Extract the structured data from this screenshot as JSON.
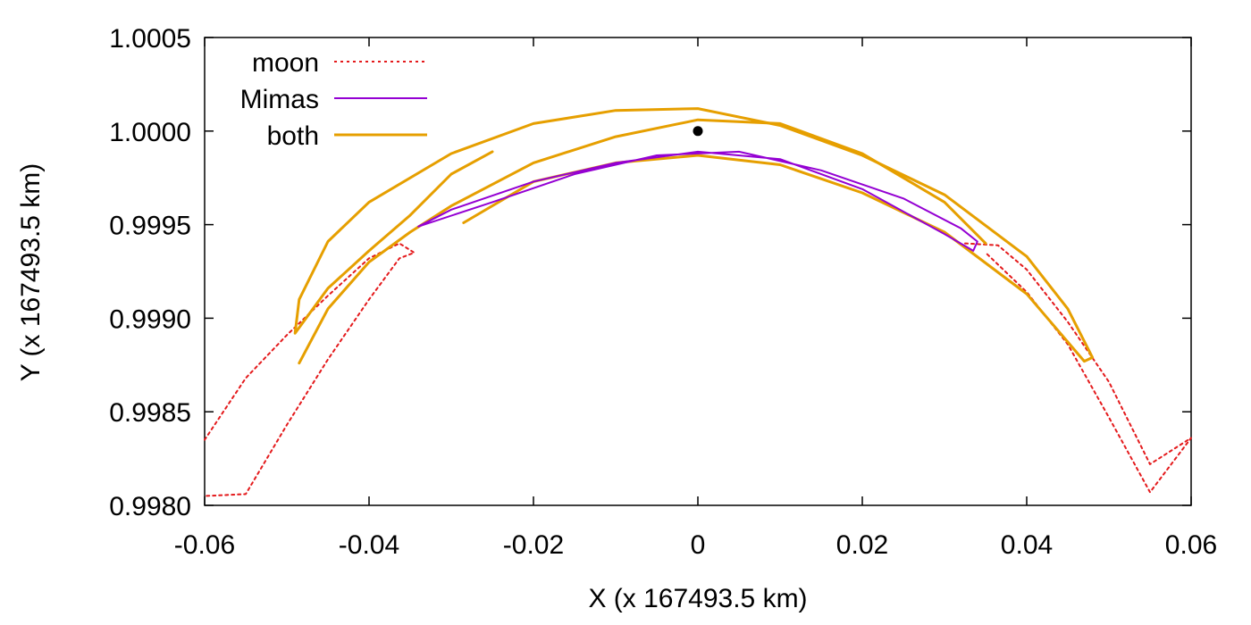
{
  "chart_data": {
    "type": "line",
    "title": "",
    "xlabel": "X (x 167493.5 km)",
    "ylabel": "Y (x 167493.5 km)",
    "xlim": [
      -0.06,
      0.06
    ],
    "ylim": [
      0.998,
      1.0005
    ],
    "x_ticks": [
      -0.06,
      -0.04,
      -0.02,
      0,
      0.02,
      0.04,
      0.06
    ],
    "x_tick_labels": [
      "-0.06",
      "-0.04",
      "-0.02",
      "0",
      "0.02",
      "0.04",
      "0.06"
    ],
    "y_ticks": [
      0.998,
      0.9985,
      0.999,
      0.9995,
      1.0,
      1.0005
    ],
    "y_tick_labels": [
      "0.9980",
      "0.9985",
      "0.9990",
      "0.9995",
      "1.0000",
      "1.0005"
    ],
    "grid": false,
    "legend_position": "top-left",
    "colors": {
      "moon": "#e41a1c",
      "mimas": "#9400d3",
      "both": "#e69f00",
      "marker": "#000000"
    },
    "series": [
      {
        "name": "moon",
        "style": "dotted",
        "x": [
          -0.06,
          -0.055,
          -0.05,
          -0.045,
          -0.04,
          -0.0363,
          -0.0345,
          -0.0363,
          -0.04,
          -0.045,
          -0.05,
          -0.055,
          -0.06
        ],
        "y": [
          0.99835,
          0.99868,
          0.99891,
          0.99912,
          0.99932,
          0.9994,
          0.99935,
          0.99932,
          0.9991,
          0.99878,
          0.99843,
          0.99806,
          0.99805
        ]
      },
      {
        "name": "moon",
        "style": "dotted",
        "x": [
          0.0325,
          0.0365,
          0.04,
          0.045,
          0.05,
          0.055,
          0.06,
          0.055,
          0.05,
          0.045,
          0.04,
          0.035
        ],
        "y": [
          0.9994,
          0.99939,
          0.99926,
          0.99898,
          0.99866,
          0.99822,
          0.99836,
          0.99807,
          0.99847,
          0.99886,
          0.99914,
          0.99935
        ]
      },
      {
        "name": "Mimas",
        "style": "solid",
        "x": [
          -0.034,
          -0.03,
          -0.02,
          -0.01,
          0,
          0.01,
          0.02,
          0.03,
          0.0335,
          0.034,
          0.032,
          0.025,
          0.015,
          0.005,
          -0.005,
          -0.015,
          -0.025,
          -0.034
        ],
        "y": [
          0.99949,
          0.99958,
          0.99973,
          0.99983,
          0.99989,
          0.99985,
          0.99969,
          0.99945,
          0.99936,
          0.99941,
          0.99948,
          0.99964,
          0.99979,
          0.99989,
          0.99987,
          0.99977,
          0.99962,
          0.99949
        ]
      },
      {
        "name": "both",
        "style": "solid",
        "x": [
          -0.0285,
          -0.02,
          -0.01,
          0,
          0.01,
          0.02,
          0.03,
          0.04,
          0.047,
          0.048,
          0.045,
          0.04,
          0.03,
          0.02,
          0.01,
          0,
          -0.01,
          -0.02,
          -0.03,
          -0.04,
          -0.045,
          -0.0485,
          -0.049,
          -0.045,
          -0.04,
          -0.035,
          -0.03,
          -0.025
        ],
        "y": [
          0.99951,
          0.99973,
          0.99983,
          0.99987,
          0.99982,
          0.99967,
          0.99946,
          0.99913,
          0.99877,
          0.99879,
          0.99905,
          0.99933,
          0.99966,
          0.99987,
          1.00003,
          1.00012,
          1.00011,
          1.00004,
          0.99988,
          0.99962,
          0.99941,
          0.9991,
          0.99892,
          0.99916,
          0.99936,
          0.99955,
          0.99977,
          0.99989
        ]
      },
      {
        "name": "both",
        "style": "solid",
        "x": [
          -0.0485,
          -0.045,
          -0.04,
          -0.035,
          -0.03,
          -0.02,
          -0.01,
          0,
          0.01,
          0.02,
          0.03,
          0.035
        ],
        "y": [
          0.99876,
          0.99905,
          0.9993,
          0.99946,
          0.9996,
          0.99983,
          0.99997,
          1.00006,
          1.00004,
          0.99988,
          0.99962,
          0.9994
        ]
      }
    ],
    "marker_points": [
      {
        "x": 0,
        "y": 1.0
      }
    ],
    "legend": [
      "moon",
      "Mimas",
      "both"
    ]
  }
}
